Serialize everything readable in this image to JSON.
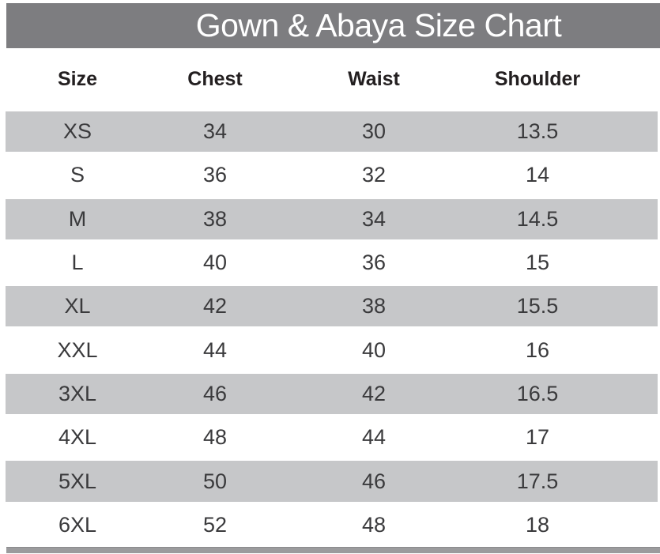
{
  "title": "Gown & Abaya Size Chart",
  "chart_data": {
    "type": "table",
    "title": "Gown & Abaya Size Chart",
    "columns": [
      "Size",
      "Chest",
      "Waist",
      "Shoulder"
    ],
    "rows": [
      [
        "XS",
        "34",
        "30",
        "13.5"
      ],
      [
        "S",
        "36",
        "32",
        "14"
      ],
      [
        "M",
        "38",
        "34",
        "14.5"
      ],
      [
        "L",
        "40",
        "36",
        "15"
      ],
      [
        "XL",
        "42",
        "38",
        "15.5"
      ],
      [
        "XXL",
        "44",
        "40",
        "16"
      ],
      [
        "3XL",
        "46",
        "42",
        "16.5"
      ],
      [
        "4XL",
        "48",
        "44",
        "17"
      ],
      [
        "5XL",
        "50",
        "46",
        "17.5"
      ],
      [
        "6XL",
        "52",
        "48",
        "18"
      ]
    ]
  },
  "colors": {
    "title_bar_bg": "#7d7d80",
    "title_text": "#ffffff",
    "row_alt_bg": "#c6c7c9",
    "row_bg": "#ffffff",
    "header_text": "#231f20",
    "data_text": "#3a3a3c",
    "footer_bar_bg": "#9b9b9d"
  }
}
